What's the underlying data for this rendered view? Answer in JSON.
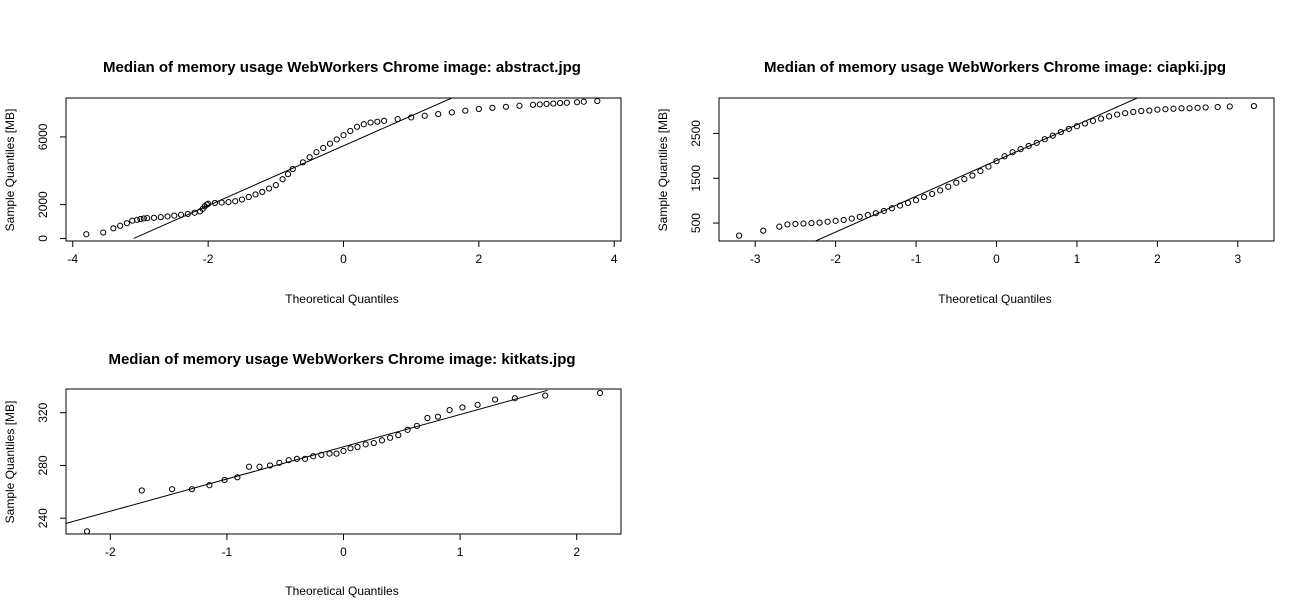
{
  "chart_data": [
    {
      "type": "scatter",
      "subtype": "qq-normal",
      "title": "Median of memory usage WebWorkers Chrome image:  abstract.jpg",
      "xlabel": "Theoretical Quantiles",
      "ylabel": "Sample Quantiles [MB]",
      "xlim": [
        -4.1,
        4.1
      ],
      "ylim": [
        -150,
        8300
      ],
      "xticks": [
        -4,
        -2,
        0,
        2,
        4
      ],
      "yticks": [
        0,
        2000,
        6000
      ],
      "reference_line": [
        [
          -3.1,
          0
        ],
        [
          1.6,
          8300
        ]
      ],
      "points_x": [
        -3.8,
        -3.55,
        -3.4,
        -3.3,
        -3.2,
        -3.12,
        -3.05,
        -3.0,
        -2.95,
        -2.9,
        -2.8,
        -2.7,
        -2.6,
        -2.5,
        -2.4,
        -2.3,
        -2.2,
        -2.12,
        -2.08,
        -2.05,
        -2.02,
        -2.0,
        -1.9,
        -1.8,
        -1.7,
        -1.6,
        -1.5,
        -1.4,
        -1.3,
        -1.2,
        -1.1,
        -1.0,
        -0.9,
        -0.82,
        -0.75,
        -0.6,
        -0.5,
        -0.4,
        -0.3,
        -0.2,
        -0.1,
        0.0,
        0.1,
        0.2,
        0.3,
        0.4,
        0.5,
        0.6,
        0.8,
        1.0,
        1.2,
        1.4,
        1.6,
        1.8,
        2.0,
        2.2,
        2.4,
        2.6,
        2.8,
        2.9,
        3.0,
        3.1,
        3.2,
        3.3,
        3.45,
        3.55,
        3.75
      ],
      "points_y": [
        250,
        350,
        600,
        750,
        900,
        1050,
        1100,
        1150,
        1180,
        1200,
        1220,
        1260,
        1300,
        1350,
        1400,
        1450,
        1520,
        1600,
        1750,
        1900,
        2000,
        2050,
        2100,
        2120,
        2150,
        2200,
        2300,
        2450,
        2600,
        2750,
        2950,
        3150,
        3500,
        3800,
        4100,
        4500,
        4800,
        5100,
        5350,
        5600,
        5850,
        6100,
        6350,
        6600,
        6750,
        6850,
        6900,
        6950,
        7050,
        7150,
        7250,
        7350,
        7450,
        7550,
        7650,
        7720,
        7780,
        7840,
        7900,
        7920,
        7950,
        7970,
        8000,
        8020,
        8050,
        8080,
        8120
      ]
    },
    {
      "type": "scatter",
      "subtype": "qq-normal",
      "title": "Median of memory usage WebWorkers Chrome image:  ciapki.jpg",
      "xlabel": "Theoretical Quantiles",
      "ylabel": "Sample Quantiles [MB]",
      "xlim": [
        -3.45,
        3.45
      ],
      "ylim": [
        100,
        3290
      ],
      "xticks": [
        -3,
        -2,
        -1,
        0,
        1,
        2,
        3
      ],
      "yticks": [
        500,
        1500,
        2500
      ],
      "reference_line": [
        [
          -2.25,
          100
        ],
        [
          1.75,
          3290
        ]
      ],
      "points_x": [
        -3.2,
        -2.9,
        -2.7,
        -2.6,
        -2.5,
        -2.4,
        -2.3,
        -2.2,
        -2.1,
        -2.0,
        -1.9,
        -1.8,
        -1.7,
        -1.6,
        -1.5,
        -1.4,
        -1.3,
        -1.2,
        -1.1,
        -1.0,
        -0.9,
        -0.8,
        -0.7,
        -0.6,
        -0.5,
        -0.4,
        -0.3,
        -0.2,
        -0.1,
        0.0,
        0.1,
        0.2,
        0.3,
        0.4,
        0.5,
        0.6,
        0.7,
        0.8,
        0.9,
        1.0,
        1.1,
        1.2,
        1.3,
        1.4,
        1.5,
        1.6,
        1.7,
        1.8,
        1.9,
        2.0,
        2.1,
        2.2,
        2.3,
        2.4,
        2.5,
        2.6,
        2.75,
        2.9,
        3.2
      ],
      "points_y": [
        220,
        330,
        420,
        470,
        480,
        490,
        500,
        510,
        530,
        550,
        570,
        600,
        640,
        680,
        720,
        770,
        830,
        890,
        950,
        1010,
        1080,
        1150,
        1230,
        1310,
        1400,
        1480,
        1560,
        1660,
        1760,
        1880,
        1990,
        2080,
        2150,
        2220,
        2290,
        2370,
        2450,
        2530,
        2600,
        2660,
        2720,
        2780,
        2830,
        2880,
        2920,
        2950,
        2980,
        3000,
        3010,
        3030,
        3040,
        3050,
        3060,
        3060,
        3070,
        3080,
        3090,
        3100,
        3110
      ]
    },
    {
      "type": "scatter",
      "subtype": "qq-normal",
      "title": "Median of memory usage WebWorkers Chrome image:  kitkats.jpg",
      "xlabel": "Theoretical Quantiles",
      "ylabel": "Sample Quantiles [MB]",
      "xlim": [
        -2.38,
        2.38
      ],
      "ylim": [
        228,
        338
      ],
      "xticks": [
        -2,
        -1,
        0,
        1,
        2
      ],
      "yticks": [
        240,
        280,
        320
      ],
      "reference_line": [
        [
          -2.38,
          236
        ],
        [
          1.75,
          337
        ]
      ],
      "points_x": [
        -2.2,
        -1.73,
        -1.47,
        -1.3,
        -1.15,
        -1.02,
        -0.91,
        -0.81,
        -0.72,
        -0.63,
        -0.55,
        -0.47,
        -0.4,
        -0.33,
        -0.26,
        -0.19,
        -0.12,
        -0.06,
        0.0,
        0.06,
        0.12,
        0.19,
        0.26,
        0.33,
        0.4,
        0.47,
        0.55,
        0.63,
        0.72,
        0.81,
        0.91,
        1.02,
        1.15,
        1.3,
        1.47,
        1.73,
        2.2
      ],
      "points_y": [
        230,
        261,
        262,
        262,
        265,
        269,
        271,
        279,
        279,
        280,
        282,
        284,
        285,
        285,
        287,
        288,
        289,
        289,
        291,
        293,
        294,
        296,
        297,
        299,
        301,
        303,
        307,
        310,
        316,
        317,
        322,
        324,
        326,
        330,
        331,
        333,
        335
      ]
    }
  ]
}
